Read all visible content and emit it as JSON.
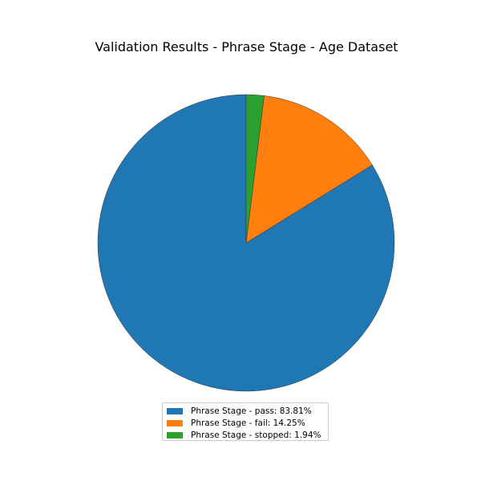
{
  "chart_data": {
    "type": "pie",
    "title": "Validation Results - Phrase Stage - Age Dataset",
    "slices": [
      {
        "label": "Phrase Stage - pass: 83.81%",
        "value": 83.81,
        "color": "#1f77b4"
      },
      {
        "label": "Phrase Stage - fail: 14.25%",
        "value": 14.25,
        "color": "#ff7f0e"
      },
      {
        "label": "Phrase Stage - stopped: 1.94%",
        "value": 1.94,
        "color": "#2ca02c"
      }
    ],
    "start_angle": "top",
    "direction": "counterclockwise",
    "legend_position": "bottom"
  }
}
